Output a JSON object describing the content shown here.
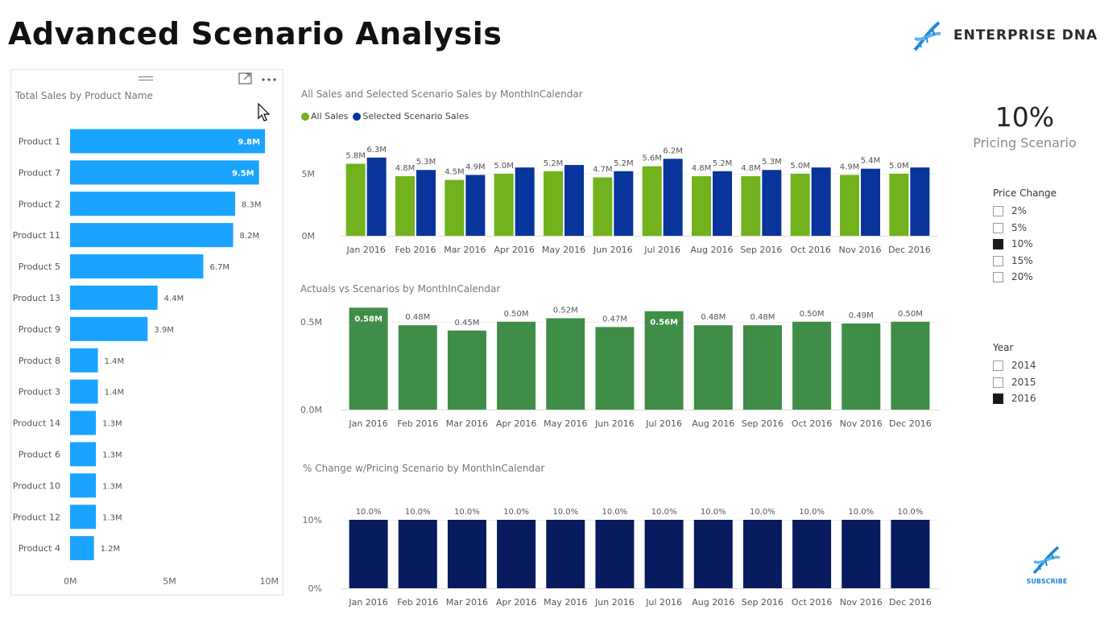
{
  "page": {
    "title": "Advanced Scenario Analysis"
  },
  "logo": {
    "text": "ENTERPRISE DNA"
  },
  "card": {
    "value": "10%",
    "label": "Pricing Scenario"
  },
  "price_slicer": {
    "title": "Price Change",
    "items": [
      {
        "label": "2%",
        "checked": false
      },
      {
        "label": "5%",
        "checked": false
      },
      {
        "label": "10%",
        "checked": true
      },
      {
        "label": "15%",
        "checked": false
      },
      {
        "label": "20%",
        "checked": false
      }
    ]
  },
  "year_slicer": {
    "title": "Year",
    "items": [
      {
        "label": "2014",
        "checked": false
      },
      {
        "label": "2015",
        "checked": false
      },
      {
        "label": "2016",
        "checked": true
      }
    ]
  },
  "subscribe": {
    "label": "SUBSCRIBE"
  },
  "colors": {
    "product_bar": "#1aa3ff",
    "all_sales": "#71b21d",
    "scenario_sales": "#08349c",
    "actuals": "#3f8d46",
    "pct_change": "#071b5e"
  },
  "chart_data": [
    {
      "id": "product",
      "type": "bar",
      "orientation": "horizontal",
      "title": "Total Sales by Product Name",
      "categories": [
        "Product 1",
        "Product 7",
        "Product 2",
        "Product 11",
        "Product 5",
        "Product 13",
        "Product 9",
        "Product 8",
        "Product 3",
        "Product 14",
        "Product 6",
        "Product 10",
        "Product 12",
        "Product 4"
      ],
      "values": [
        9.8,
        9.5,
        8.3,
        8.2,
        6.7,
        4.4,
        3.9,
        1.4,
        1.4,
        1.3,
        1.3,
        1.3,
        1.3,
        1.2
      ],
      "labels": [
        "9.8M",
        "9.5M",
        "8.3M",
        "8.2M",
        "6.7M",
        "4.4M",
        "3.9M",
        "1.4M",
        "1.4M",
        "1.3M",
        "1.3M",
        "1.3M",
        "1.3M",
        "1.2M"
      ],
      "xlim": [
        0,
        10
      ],
      "ticks": [
        {
          "v": 0,
          "label": "0M"
        },
        {
          "v": 5,
          "label": "5M"
        },
        {
          "v": 10,
          "label": "10M"
        }
      ]
    },
    {
      "id": "sales",
      "type": "bar",
      "title": "All Sales and Selected Scenario Sales by MonthInCalendar",
      "categories": [
        "Jan 2016",
        "Feb 2016",
        "Mar 2016",
        "Apr 2016",
        "May 2016",
        "Jun 2016",
        "Jul 2016",
        "Aug 2016",
        "Sep 2016",
        "Oct 2016",
        "Nov 2016",
        "Dec 2016"
      ],
      "series": [
        {
          "name": "All Sales",
          "values": [
            5.8,
            4.8,
            4.5,
            5.0,
            5.2,
            4.7,
            5.6,
            4.8,
            4.8,
            5.0,
            4.9,
            5.0
          ],
          "labels": [
            "5.8M",
            "4.8M",
            "4.5M",
            "5.0M",
            "5.2M",
            "4.7M",
            "5.6M",
            "4.8M",
            "4.8M",
            "5.0M",
            "4.9M",
            "5.0M"
          ]
        },
        {
          "name": "Selected Scenario Sales",
          "values": [
            6.3,
            5.3,
            4.9,
            5.5,
            5.7,
            5.2,
            6.2,
            5.2,
            5.3,
            5.5,
            5.4,
            5.5
          ],
          "labels": [
            "6.3M",
            "5.3M",
            "4.9M",
            "",
            "",
            "5.2M",
            "6.2M",
            "5.2M",
            "5.3M",
            "",
            "5.4M",
            ""
          ]
        }
      ],
      "ylim": [
        0,
        7
      ],
      "ticks": [
        {
          "v": 0,
          "label": "0M"
        },
        {
          "v": 5,
          "label": "5M"
        }
      ]
    },
    {
      "id": "actuals",
      "type": "bar",
      "title": "Actuals vs Scenarios by MonthInCalendar",
      "categories": [
        "Jan 2016",
        "Feb 2016",
        "Mar 2016",
        "Apr 2016",
        "May 2016",
        "Jun 2016",
        "Jul 2016",
        "Aug 2016",
        "Sep 2016",
        "Oct 2016",
        "Nov 2016",
        "Dec 2016"
      ],
      "values": [
        0.58,
        0.48,
        0.45,
        0.5,
        0.52,
        0.47,
        0.56,
        0.48,
        0.48,
        0.5,
        0.49,
        0.5
      ],
      "labels": [
        "0.58M",
        "0.48M",
        "0.45M",
        "0.50M",
        "0.52M",
        "0.47M",
        "0.56M",
        "0.48M",
        "0.48M",
        "0.50M",
        "0.49M",
        "0.50M"
      ],
      "ylim": [
        0,
        0.6
      ],
      "ticks": [
        {
          "v": 0,
          "label": "0.0M"
        },
        {
          "v": 0.5,
          "label": "0.5M"
        }
      ]
    },
    {
      "id": "pct",
      "type": "bar",
      "title": "% Change w/Pricing Scenario by MonthInCalendar",
      "categories": [
        "Jan 2016",
        "Feb 2016",
        "Mar 2016",
        "Apr 2016",
        "May 2016",
        "Jun 2016",
        "Jul 2016",
        "Aug 2016",
        "Sep 2016",
        "Oct 2016",
        "Nov 2016",
        "Dec 2016"
      ],
      "values": [
        10,
        10,
        10,
        10,
        10,
        10,
        10,
        10,
        10,
        10,
        10,
        10
      ],
      "labels": [
        "10.0%",
        "10.0%",
        "10.0%",
        "10.0%",
        "10.0%",
        "10.0%",
        "10.0%",
        "10.0%",
        "10.0%",
        "10.0%",
        "10.0%",
        "10.0%"
      ],
      "ylim": [
        0,
        10
      ],
      "ticks": [
        {
          "v": 0,
          "label": "0%"
        },
        {
          "v": 10,
          "label": "10%"
        }
      ]
    }
  ]
}
